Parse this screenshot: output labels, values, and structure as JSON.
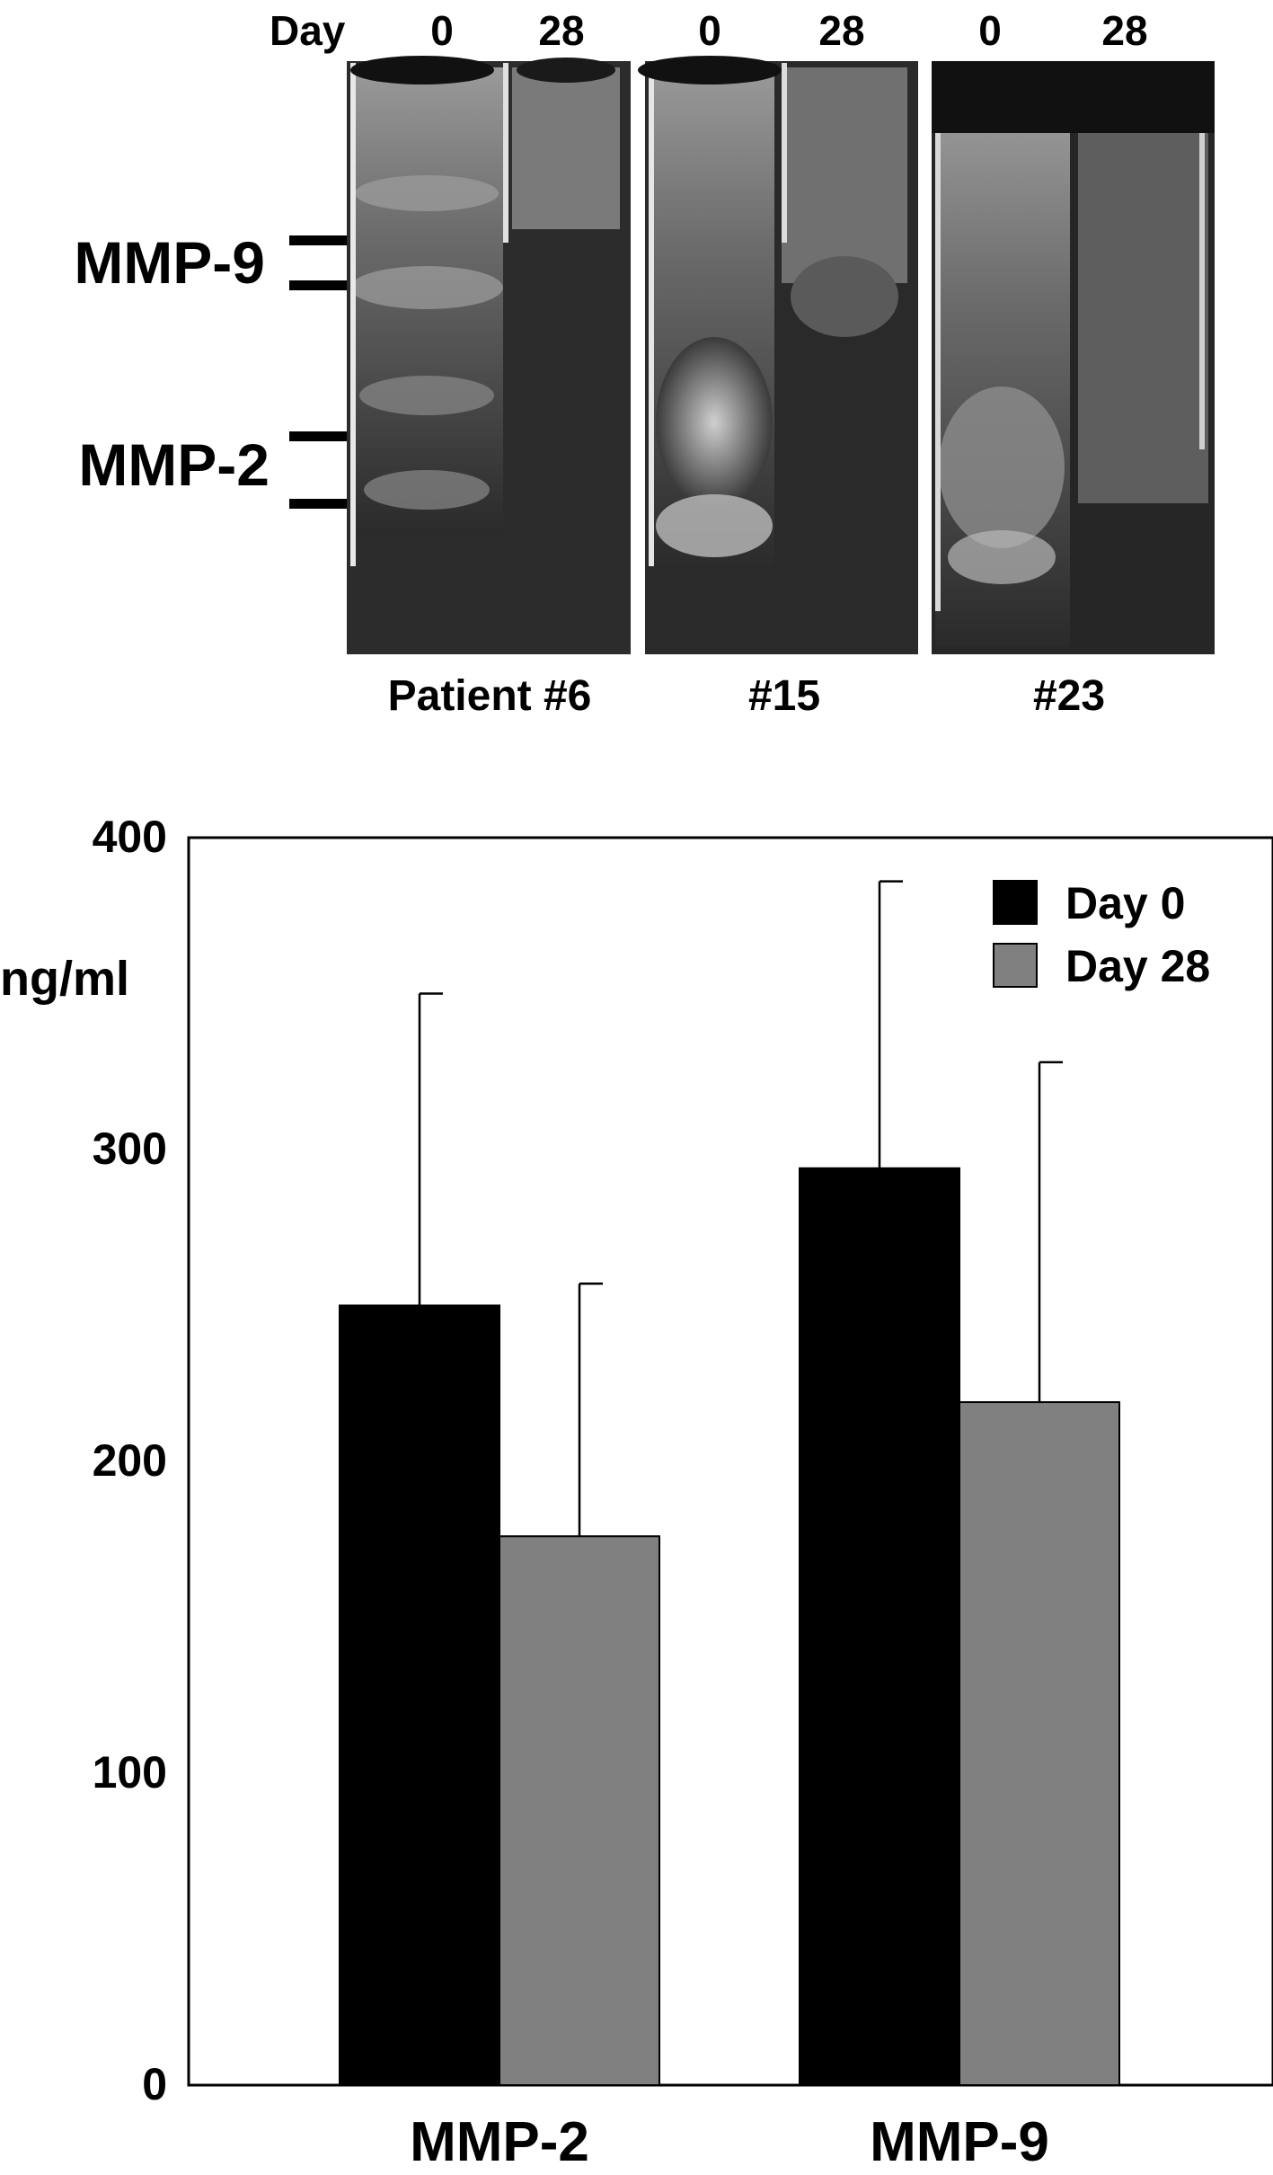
{
  "gel": {
    "day_label": "Day",
    "lane_days": [
      "0",
      "28",
      "0",
      "28",
      "0",
      "28"
    ],
    "band_labels": [
      "MMP-9",
      "MMP-2"
    ],
    "patients": [
      "Patient #6",
      "#15",
      "#23"
    ]
  },
  "chart_data": {
    "type": "bar",
    "categories": [
      "MMP-2",
      "MMP-9"
    ],
    "series": [
      {
        "name": "Day 0",
        "values": [
          250,
          294
        ],
        "error": [
          100,
          92
        ],
        "color": "#000000"
      },
      {
        "name": "Day 28",
        "values": [
          176,
          219
        ],
        "error": [
          81,
          109
        ],
        "color": "#808080"
      }
    ],
    "ylabel": "ng/ml",
    "yticks": [
      0,
      100,
      200,
      300,
      400
    ],
    "ylim": [
      0,
      400
    ],
    "legend": "top-right",
    "grid": false
  }
}
